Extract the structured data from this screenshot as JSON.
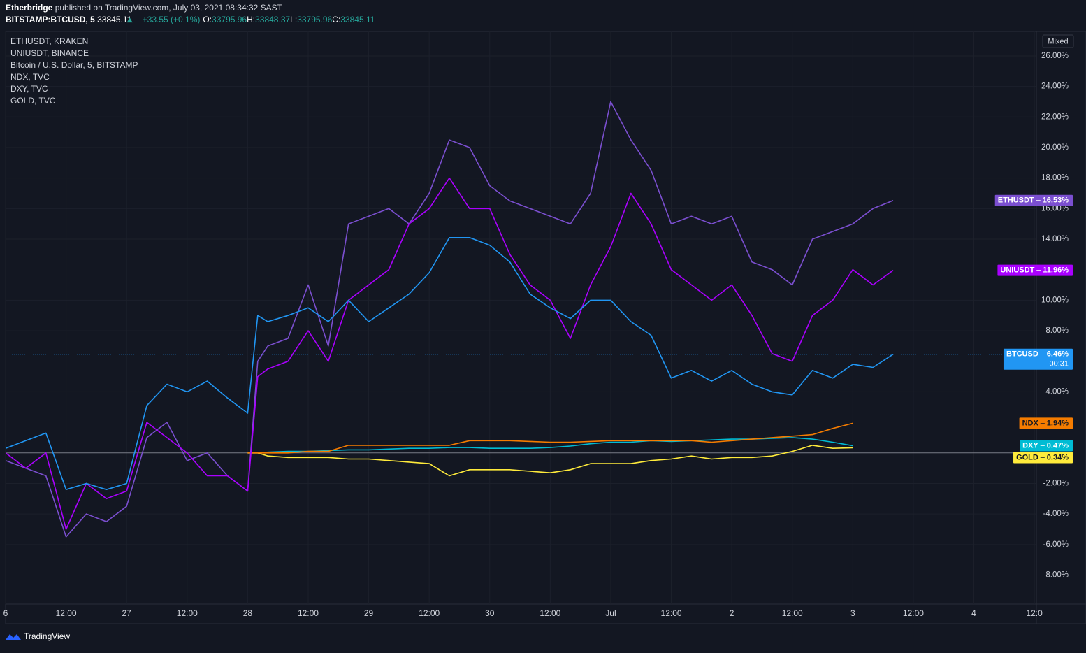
{
  "header": {
    "author": "Etherbridge",
    "published": "published on TradingView.com, July 03, 2021 08:34:32 SAST",
    "symbol": "BITSTAMP:BTCUSD, 5",
    "price": "33845.11",
    "change": "+33.55 (+0.1%)",
    "ohlc": [
      {
        "label": "O:",
        "value": "33795.96"
      },
      {
        "label": "H:",
        "value": "33848.37"
      },
      {
        "label": "L:",
        "value": "33795.96"
      },
      {
        "label": "C:",
        "value": "33845.11"
      }
    ]
  },
  "scale_mode": "Mixed",
  "footer": "TradingView",
  "chart_data": {
    "type": "line",
    "grid": true,
    "x": [
      0,
      4,
      8,
      12,
      16,
      20,
      24,
      28,
      32,
      36,
      40,
      44,
      48,
      50,
      52,
      56,
      60,
      64,
      68,
      72,
      76,
      80,
      84,
      88,
      92,
      96,
      100,
      104,
      108,
      112,
      116,
      120,
      124,
      128,
      132,
      136,
      140,
      144,
      148,
      152,
      156,
      160,
      164,
      168,
      172,
      176
    ],
    "xlim": [
      0,
      204.4
    ],
    "xticks": [
      {
        "value": 0,
        "label": "6"
      },
      {
        "value": 12,
        "label": "12:00"
      },
      {
        "value": 24,
        "label": "27"
      },
      {
        "value": 36,
        "label": "12:00"
      },
      {
        "value": 48,
        "label": "28"
      },
      {
        "value": 60,
        "label": "12:00"
      },
      {
        "value": 72,
        "label": "29"
      },
      {
        "value": 84,
        "label": "12:00"
      },
      {
        "value": 96,
        "label": "30"
      },
      {
        "value": 108,
        "label": "12:00"
      },
      {
        "value": 120,
        "label": "Jul"
      },
      {
        "value": 132,
        "label": "12:00"
      },
      {
        "value": 144,
        "label": "2"
      },
      {
        "value": 156,
        "label": "12:00"
      },
      {
        "value": 168,
        "label": "3"
      },
      {
        "value": 180,
        "label": "12:00"
      },
      {
        "value": 192,
        "label": "4"
      },
      {
        "value": 204,
        "label": "12:0"
      }
    ],
    "ylim": [
      -9.9,
      27.6
    ],
    "yticks": [
      {
        "value": 26,
        "label": "26.00%"
      },
      {
        "value": 24,
        "label": "24.00%"
      },
      {
        "value": 22,
        "label": "22.00%"
      },
      {
        "value": 20,
        "label": "20.00%"
      },
      {
        "value": 18,
        "label": "18.00%"
      },
      {
        "value": 16,
        "label": "16.00%"
      },
      {
        "value": 14,
        "label": "14.00%"
      },
      {
        "value": 10,
        "label": "10.00%"
      },
      {
        "value": 8,
        "label": "8.00%"
      },
      {
        "value": 4,
        "label": "4.00%"
      },
      {
        "value": -2,
        "label": "-2.00%"
      },
      {
        "value": -4,
        "label": "-4.00%"
      },
      {
        "value": -6,
        "label": "-6.00%"
      },
      {
        "value": -8,
        "label": "-8.00%"
      }
    ],
    "series": [
      {
        "name": "ETHUSDT, KRAKEN",
        "tag": "ETHUSDT",
        "color": "#7b4fd0",
        "last_value_label": "16.53%",
        "values": [
          -0.5,
          -1,
          -1.5,
          -5.5,
          -4,
          -4.5,
          -3.5,
          1,
          2,
          -0.5,
          0,
          -1.5,
          -2.5,
          6,
          7,
          7.5,
          11,
          7,
          15,
          15.5,
          16,
          15,
          17,
          20.5,
          20,
          17.5,
          16.5,
          16,
          15.5,
          15,
          17,
          23,
          20.5,
          18.5,
          15,
          15.5,
          15,
          15.5,
          12.5,
          12,
          11,
          14,
          14.5,
          15,
          16,
          16.53
        ]
      },
      {
        "name": "UNIUSDT, BINANCE",
        "tag": "UNIUSDT",
        "color": "#aa00ff",
        "last_value_label": "11.96%",
        "values": [
          0,
          -1,
          0,
          -5,
          -2,
          -3,
          -2.5,
          2,
          1,
          0,
          -1.5,
          -1.5,
          -2.5,
          5,
          5.5,
          6,
          8,
          6,
          10,
          11,
          12,
          15,
          16,
          18,
          16,
          16,
          13,
          11,
          10,
          7.5,
          11,
          13.5,
          17,
          15,
          12,
          11,
          10,
          11,
          9,
          6.5,
          6,
          9,
          10,
          12,
          11,
          11.96
        ]
      },
      {
        "name": "Bitcoin / U.S. Dollar, 5, BITSTAMP",
        "tag": "BTCUSD",
        "color": "#2196f3",
        "last_value_label": "6.46%",
        "countdown": "00:31",
        "values": [
          0.3,
          0.8,
          1.3,
          -2.4,
          -2,
          -2.4,
          -2,
          3.1,
          4.5,
          4,
          4.7,
          3.6,
          2.6,
          9,
          8.6,
          9,
          9.5,
          8.6,
          10,
          8.6,
          9.5,
          10.4,
          11.8,
          14.1,
          14.1,
          13.6,
          12.5,
          10.4,
          9.5,
          8.8,
          10,
          10,
          8.6,
          7.7,
          4.9,
          5.4,
          4.7,
          5.4,
          4.5,
          4,
          3.8,
          5.4,
          4.9,
          5.8,
          5.6,
          6.46
        ]
      },
      {
        "name": "NDX, TVC",
        "tag": "NDX",
        "color": "#f57c00",
        "last_value_label": "1.94%",
        "values": [
          null,
          null,
          null,
          null,
          null,
          null,
          null,
          null,
          null,
          null,
          null,
          null,
          0,
          0,
          0,
          0,
          0.1,
          0.1,
          0.5,
          0.5,
          0.5,
          0.5,
          0.5,
          0.5,
          0.8,
          0.8,
          0.8,
          0.75,
          0.7,
          0.7,
          0.75,
          0.8,
          0.8,
          0.8,
          0.8,
          0.8,
          0.7,
          0.8,
          0.9,
          1.0,
          1.1,
          1.2,
          1.6,
          1.94,
          null,
          null
        ]
      },
      {
        "name": "DXY, TVC",
        "tag": "DXY",
        "color": "#00bcd4",
        "last_value_label": "0.47%",
        "values": [
          null,
          null,
          null,
          null,
          null,
          null,
          null,
          null,
          null,
          null,
          null,
          null,
          0,
          0,
          0.05,
          0.1,
          0.1,
          0.15,
          0.2,
          0.2,
          0.25,
          0.3,
          0.3,
          0.35,
          0.35,
          0.3,
          0.3,
          0.3,
          0.35,
          0.45,
          0.6,
          0.7,
          0.7,
          0.8,
          0.75,
          0.8,
          0.85,
          0.9,
          0.9,
          0.95,
          1.0,
          0.9,
          0.7,
          0.47,
          null,
          null
        ]
      },
      {
        "name": "GOLD, TVC",
        "tag": "GOLD",
        "color": "#ffeb3b",
        "last_value_label": "0.34%",
        "values": [
          null,
          null,
          null,
          null,
          null,
          null,
          null,
          null,
          null,
          null,
          null,
          null,
          0,
          0,
          -0.2,
          -0.3,
          -0.3,
          -0.3,
          -0.4,
          -0.4,
          -0.5,
          -0.6,
          -0.7,
          -1.5,
          -1.1,
          -1.1,
          -1.1,
          -1.2,
          -1.3,
          -1.1,
          -0.7,
          -0.7,
          -0.7,
          -0.5,
          -0.4,
          -0.2,
          -0.4,
          -0.3,
          -0.3,
          -0.2,
          0.1,
          0.5,
          0.3,
          0.34,
          null,
          null
        ]
      }
    ]
  }
}
